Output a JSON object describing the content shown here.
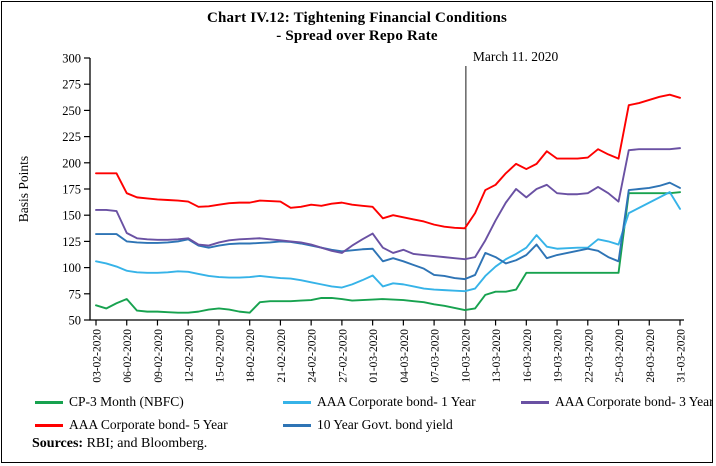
{
  "header": {
    "title_line1": "Chart IV.12: Tightening Financial Conditions",
    "title_line2": "- Spread over Repo Rate"
  },
  "footer": {
    "sources_label": "Sources:",
    "sources_text": " RBI; and Bloomberg."
  },
  "chart_data": {
    "type": "line",
    "title": "Chart IV.12: Tightening Financial Conditions - Spread over Repo Rate",
    "xlabel": "",
    "ylabel": "Basis Points",
    "ylim": [
      50,
      300
    ],
    "yticks": [
      50,
      75,
      100,
      125,
      150,
      175,
      200,
      225,
      250,
      275,
      300
    ],
    "grid": false,
    "legend_position": "bottom",
    "x_tick_labels": [
      "03-02-2020",
      "06-02-2020",
      "09-02-2020",
      "12-02-2020",
      "15-02-2020",
      "18-02-2020",
      "21-02-2020",
      "24-02-2020",
      "27-02-2020",
      "01-03-2020",
      "04-03-2020",
      "07-03-2020",
      "10-03-2020",
      "13-03-2020",
      "16-03-2020",
      "19-03-2020",
      "22-03-2020",
      "25-03-2020",
      "28-03-2020",
      "31-03-2020"
    ],
    "x_tick_day_step": 3,
    "x_days_total": 58,
    "annotation": {
      "label": "March 11. 2020",
      "x_day_index": 36.1,
      "line_color": "#3f3f3f"
    },
    "series": [
      {
        "name": "CP-3 Month (NBFC)",
        "color": "#17a24f",
        "values": [
          64,
          61,
          66,
          70,
          59,
          58,
          58,
          57.5,
          57,
          57,
          58,
          60,
          61,
          60,
          58,
          57,
          67,
          68,
          68,
          68,
          68.5,
          69,
          71,
          71,
          70,
          68.5,
          69,
          69.5,
          70,
          69.5,
          69,
          68,
          67,
          65,
          63.5,
          61.5,
          59.5,
          61,
          74,
          77,
          77,
          79,
          95,
          95,
          95,
          95,
          95,
          95,
          95,
          95,
          95,
          95,
          171,
          171,
          171,
          171,
          171,
          172
        ]
      },
      {
        "name": "AAA Corporate bond- 1 Year",
        "color": "#36b3e8",
        "values": [
          106,
          104,
          101,
          97,
          95.5,
          95,
          95,
          95.5,
          96.5,
          96,
          94,
          92,
          91,
          90.5,
          90.5,
          91,
          92,
          91,
          90,
          89.5,
          88,
          86,
          84,
          82,
          81,
          84,
          88,
          92.5,
          82,
          85,
          84,
          82,
          80,
          79,
          78.5,
          78,
          77.5,
          80,
          92,
          101,
          108,
          113,
          119,
          131,
          120,
          118,
          118.5,
          119,
          119,
          127,
          125,
          122,
          152,
          157,
          162,
          167,
          172,
          156
        ]
      },
      {
        "name": "AAA Corporate bond- 3 Year",
        "color": "#6a51a3",
        "values": [
          155,
          155,
          154,
          133,
          128,
          127,
          126.5,
          126.5,
          127,
          128,
          122,
          121,
          124,
          126,
          127,
          127.5,
          128,
          127,
          126,
          125,
          124,
          122,
          119,
          116,
          114,
          121,
          127,
          132.5,
          119,
          114,
          117,
          113,
          112,
          111,
          110,
          109,
          108,
          110,
          126,
          145,
          162,
          175,
          167,
          175,
          179,
          171,
          170,
          170,
          171,
          177,
          171,
          163,
          212,
          213,
          213,
          213,
          213,
          214
        ]
      },
      {
        "name": "AAA Corporate bond- 5 Year",
        "color": "#fe0000",
        "values": [
          190,
          190,
          190,
          171,
          167,
          166,
          165,
          164.5,
          164,
          163,
          158,
          158.5,
          160,
          161.5,
          162,
          162,
          164,
          163.5,
          163,
          157,
          158,
          160,
          159,
          161,
          162,
          160,
          159,
          158,
          147,
          150,
          148,
          146,
          144,
          141,
          139,
          138,
          137.5,
          152,
          174,
          179,
          190,
          199,
          194,
          199,
          211,
          204,
          204,
          204,
          205,
          213,
          208,
          204,
          255,
          257,
          260,
          263,
          265,
          262
        ]
      },
      {
        "name": "10 Year Govt. bond yield",
        "color": "#2e74b5",
        "values": [
          132,
          132,
          132,
          125,
          124,
          123.5,
          123.5,
          124,
          125,
          127,
          121,
          119,
          121,
          122.5,
          123,
          123,
          123.5,
          124,
          125,
          124.5,
          123,
          121,
          119,
          117,
          115.5,
          116.5,
          117.5,
          118,
          106,
          109,
          106,
          102.5,
          99,
          93,
          92,
          90,
          89,
          93,
          114,
          110,
          104,
          107,
          112,
          122,
          109,
          112,
          114,
          116,
          118,
          116,
          110,
          106,
          174,
          175,
          176,
          178,
          181,
          176
        ]
      }
    ]
  }
}
